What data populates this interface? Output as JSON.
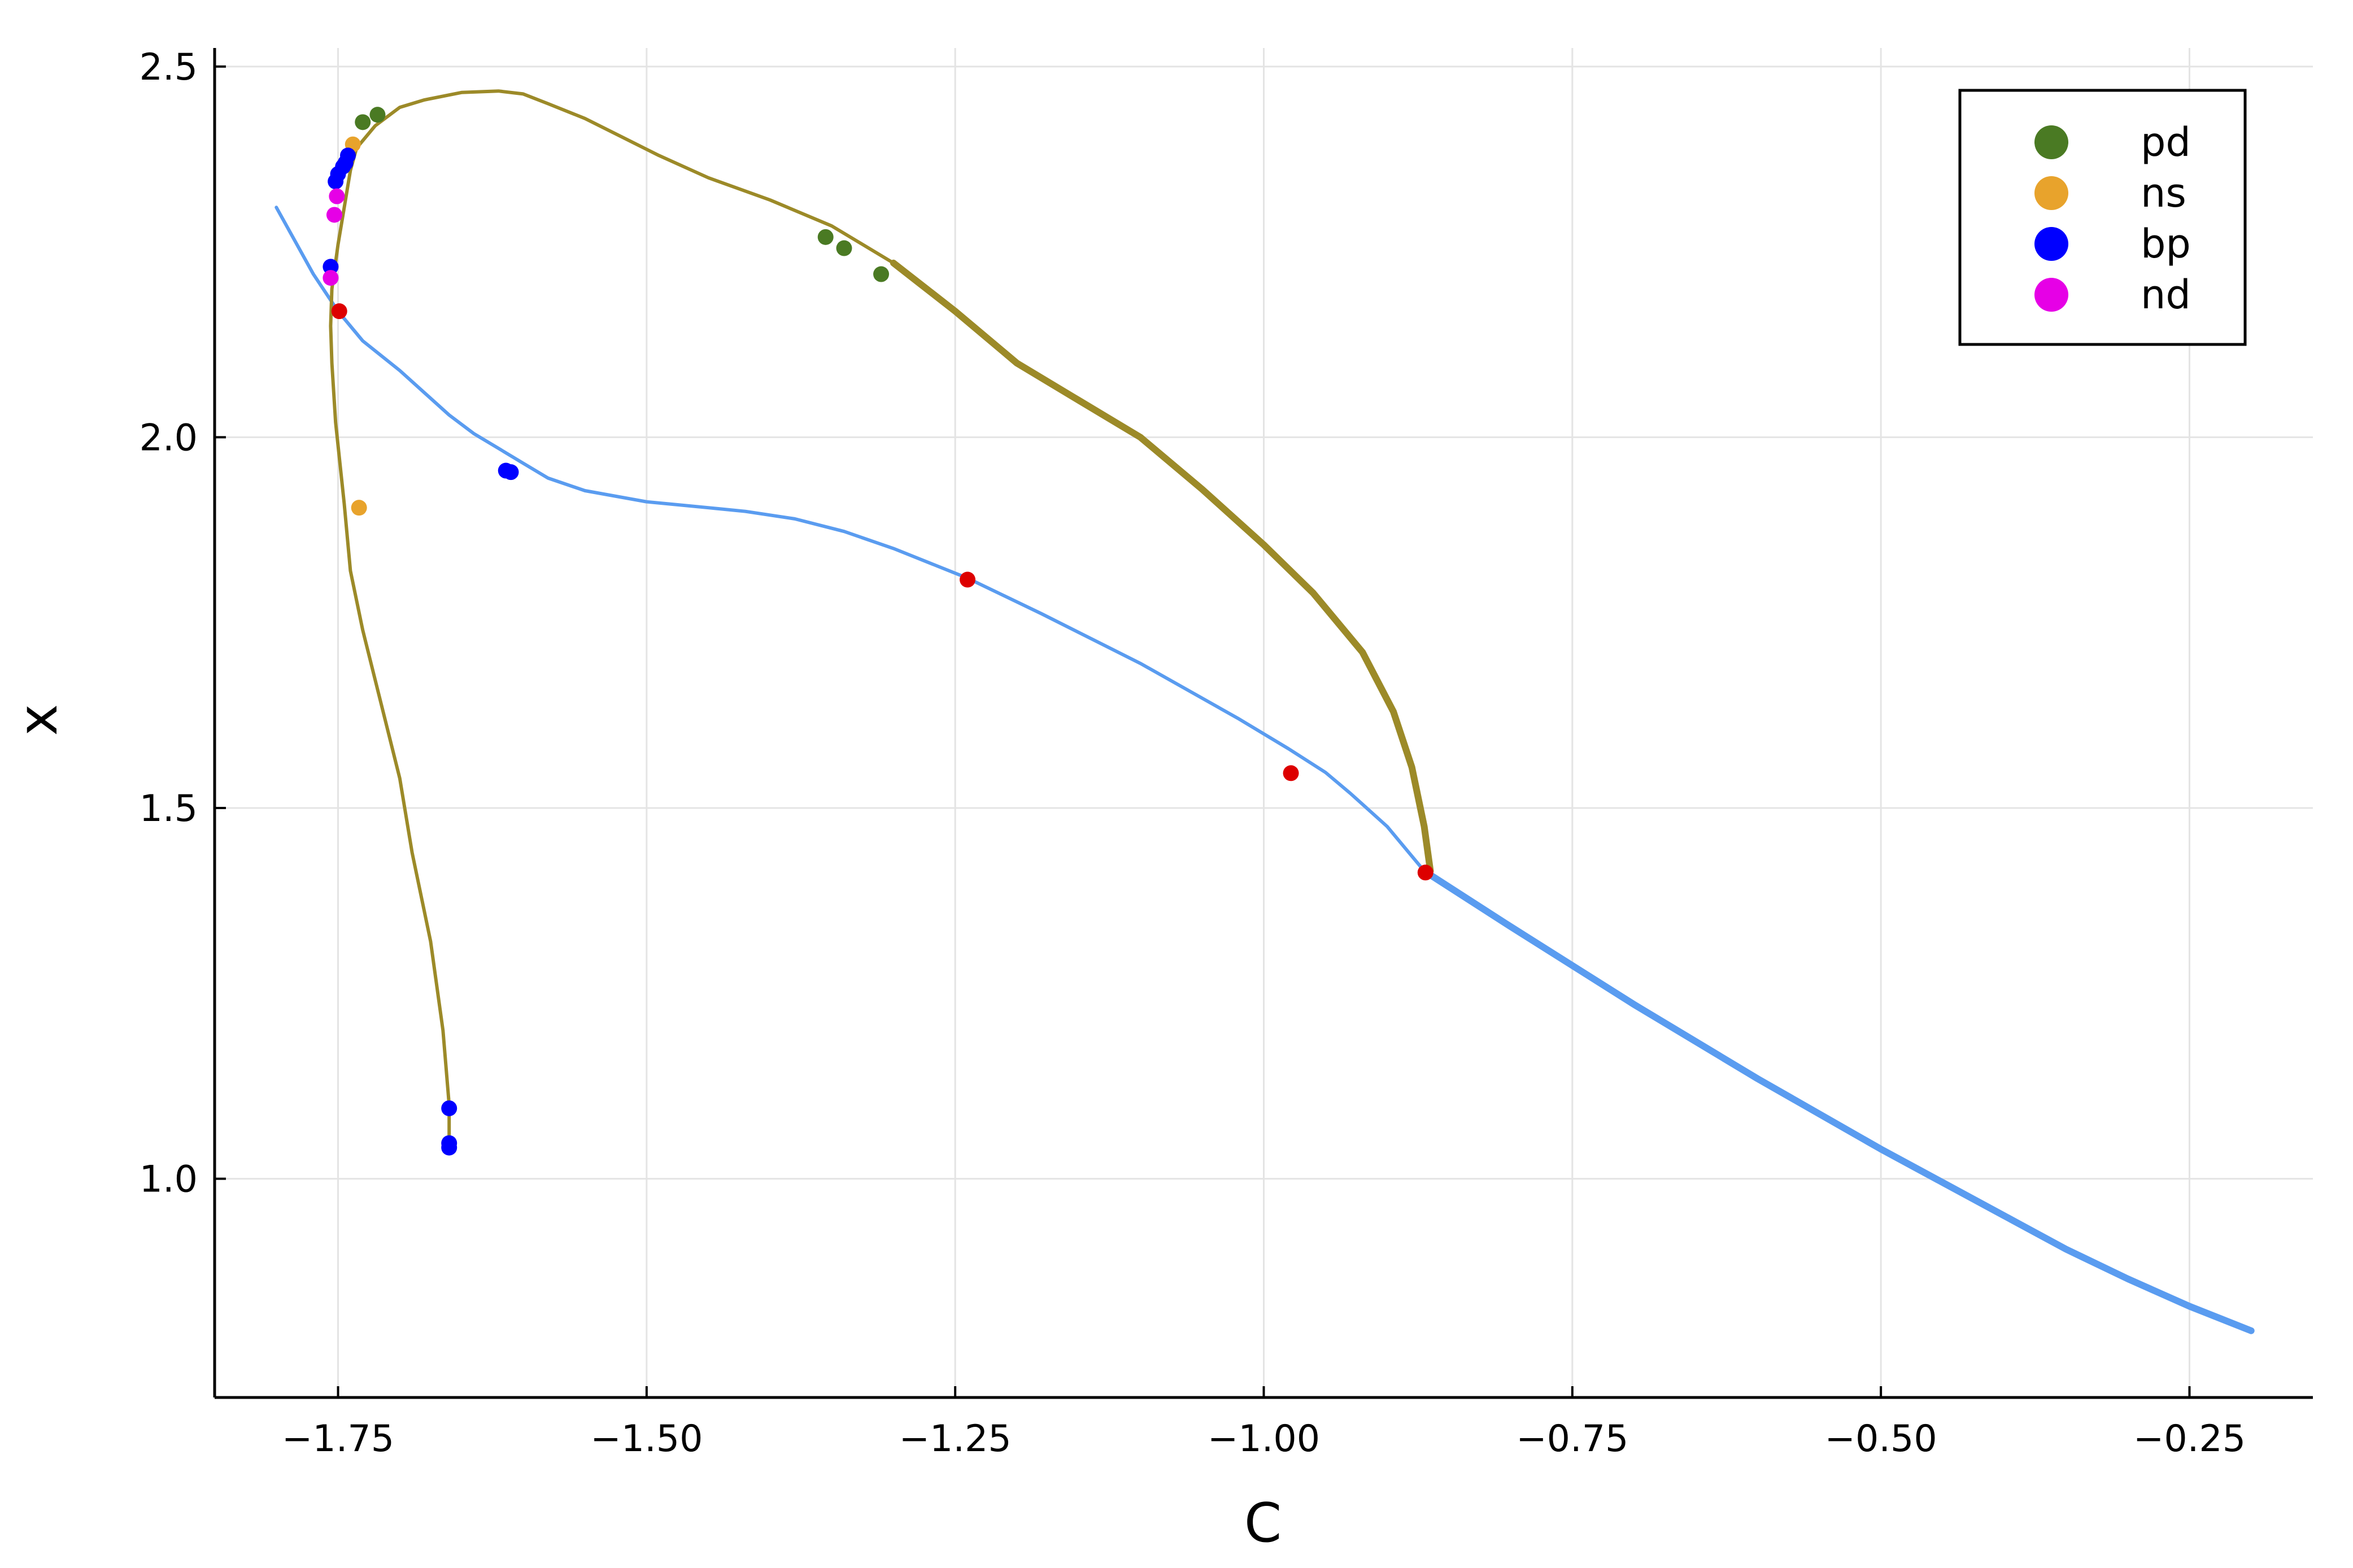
{
  "chart_data": {
    "type": "line",
    "xlabel": "C",
    "ylabel": "x",
    "xlim": [
      -1.85,
      -0.15
    ],
    "ylim": [
      0.705,
      2.525
    ],
    "xticks": [
      -1.75,
      -1.5,
      -1.25,
      -1.0,
      -0.75,
      -0.5,
      -0.25
    ],
    "xtick_labels": [
      "−1.75",
      "−1.50",
      "−1.25",
      "−1.00",
      "−0.75",
      "−0.50",
      "−0.25"
    ],
    "yticks": [
      1.0,
      1.5,
      2.0,
      2.5
    ],
    "ytick_labels": [
      "1.0",
      "1.5",
      "2.0",
      "2.5"
    ],
    "grid": true,
    "legend_position": "top-right",
    "colors": {
      "blue_branch": "#5a9cf0",
      "olive_branch": "#9c8a28",
      "pd": "#4a7a23",
      "ns": "#e8a32c",
      "bp": "#0000ff",
      "nd": "#e600e6",
      "special": "#dd0000"
    },
    "series": [
      {
        "kind": "blue_branch",
        "segments": [
          {
            "width": "thin",
            "points": [
              [
                -1.8,
                2.31
              ],
              [
                -1.77,
                2.22
              ],
              [
                -1.75,
                2.17
              ],
              [
                -1.73,
                2.13
              ],
              [
                -1.7,
                2.09
              ],
              [
                -1.68,
                2.06
              ],
              [
                -1.66,
                2.03
              ],
              [
                -1.64,
                2.005
              ],
              [
                -1.62,
                1.985
              ],
              [
                -1.6,
                1.965
              ],
              [
                -1.58,
                1.945
              ],
              [
                -1.55,
                1.928
              ],
              [
                -1.5,
                1.913
              ],
              [
                -1.45,
                1.905
              ],
              [
                -1.42,
                1.9
              ],
              [
                -1.38,
                1.89
              ],
              [
                -1.34,
                1.873
              ],
              [
                -1.3,
                1.85
              ],
              [
                -1.24,
                1.81
              ],
              [
                -1.18,
                1.762
              ],
              [
                -1.1,
                1.695
              ],
              [
                -1.02,
                1.62
              ],
              [
                -0.98,
                1.58
              ],
              [
                -0.95,
                1.548
              ],
              [
                -0.93,
                1.52
              ],
              [
                -0.9,
                1.475
              ],
              [
                -0.87,
                1.415
              ]
            ]
          },
          {
            "width": "thick",
            "points": [
              [
                -0.87,
                1.415
              ],
              [
                -0.8,
                1.34
              ],
              [
                -0.7,
                1.235
              ],
              [
                -0.6,
                1.135
              ],
              [
                -0.5,
                1.04
              ],
              [
                -0.45,
                0.995
              ],
              [
                -0.4,
                0.95
              ],
              [
                -0.35,
                0.905
              ],
              [
                -0.3,
                0.865
              ],
              [
                -0.25,
                0.828
              ],
              [
                -0.2,
                0.795
              ]
            ]
          }
        ]
      },
      {
        "kind": "olive_branch",
        "segments": [
          {
            "width": "thin",
            "points": [
              [
                -1.66,
                1.04
              ],
              [
                -1.66,
                1.1
              ],
              [
                -1.665,
                1.2
              ],
              [
                -1.675,
                1.32
              ],
              [
                -1.69,
                1.44
              ],
              [
                -1.7,
                1.54
              ],
              [
                -1.715,
                1.64
              ],
              [
                -1.73,
                1.74
              ],
              [
                -1.74,
                1.82
              ],
              [
                -1.745,
                1.91
              ],
              [
                -1.752,
                2.02
              ],
              [
                -1.755,
                2.1
              ],
              [
                -1.756,
                2.15
              ],
              [
                -1.755,
                2.2
              ],
              [
                -1.75,
                2.26
              ],
              [
                -1.745,
                2.31
              ],
              [
                -1.74,
                2.36
              ],
              [
                -1.735,
                2.39
              ],
              [
                -1.72,
                2.42
              ],
              [
                -1.7,
                2.445
              ],
              [
                -1.68,
                2.455
              ],
              [
                -1.65,
                2.465
              ],
              [
                -1.62,
                2.467
              ],
              [
                -1.6,
                2.463
              ],
              [
                -1.58,
                2.45
              ],
              [
                -1.55,
                2.43
              ],
              [
                -1.52,
                2.405
              ],
              [
                -1.49,
                2.38
              ],
              [
                -1.45,
                2.35
              ],
              [
                -1.4,
                2.32
              ],
              [
                -1.35,
                2.285
              ],
              [
                -1.3,
                2.235
              ]
            ]
          },
          {
            "width": "thick",
            "points": [
              [
                -1.3,
                2.235
              ],
              [
                -1.25,
                2.17
              ],
              [
                -1.2,
                2.1
              ],
              [
                -1.15,
                2.05
              ],
              [
                -1.1,
                2.0
              ],
              [
                -1.05,
                1.93
              ],
              [
                -1.0,
                1.855
              ],
              [
                -0.96,
                1.79
              ],
              [
                -0.92,
                1.71
              ],
              [
                -0.895,
                1.63
              ],
              [
                -0.88,
                1.555
              ],
              [
                -0.87,
                1.475
              ],
              [
                -0.865,
                1.415
              ]
            ]
          }
        ]
      }
    ],
    "points": {
      "pd": [
        [
          -1.73,
          2.425
        ],
        [
          -1.718,
          2.435
        ],
        [
          -1.355,
          2.27
        ],
        [
          -1.34,
          2.255
        ],
        [
          -1.31,
          2.22
        ]
      ],
      "ns": [
        [
          -1.738,
          2.395
        ],
        [
          -1.733,
          1.905
        ]
      ],
      "bp": [
        [
          -1.756,
          2.23
        ],
        [
          -1.742,
          2.38
        ],
        [
          -1.746,
          2.365
        ],
        [
          -1.752,
          2.345
        ],
        [
          -1.75,
          2.355
        ],
        [
          -1.744,
          2.37
        ],
        [
          -1.614,
          1.955
        ],
        [
          -1.61,
          1.953
        ],
        [
          -1.66,
          1.095
        ],
        [
          -1.66,
          1.048
        ],
        [
          -1.66,
          1.042
        ]
      ],
      "nd": [
        [
          -1.756,
          2.215
        ],
        [
          -1.753,
          2.3
        ],
        [
          -1.751,
          2.325
        ]
      ],
      "special": [
        [
          -1.749,
          2.17
        ],
        [
          -1.24,
          1.808
        ],
        [
          -0.978,
          1.547
        ],
        [
          -0.869,
          1.413
        ]
      ]
    },
    "legend": [
      {
        "key": "pd",
        "label": "pd"
      },
      {
        "key": "ns",
        "label": "ns"
      },
      {
        "key": "bp",
        "label": "bp"
      },
      {
        "key": "nd",
        "label": "nd"
      }
    ]
  }
}
